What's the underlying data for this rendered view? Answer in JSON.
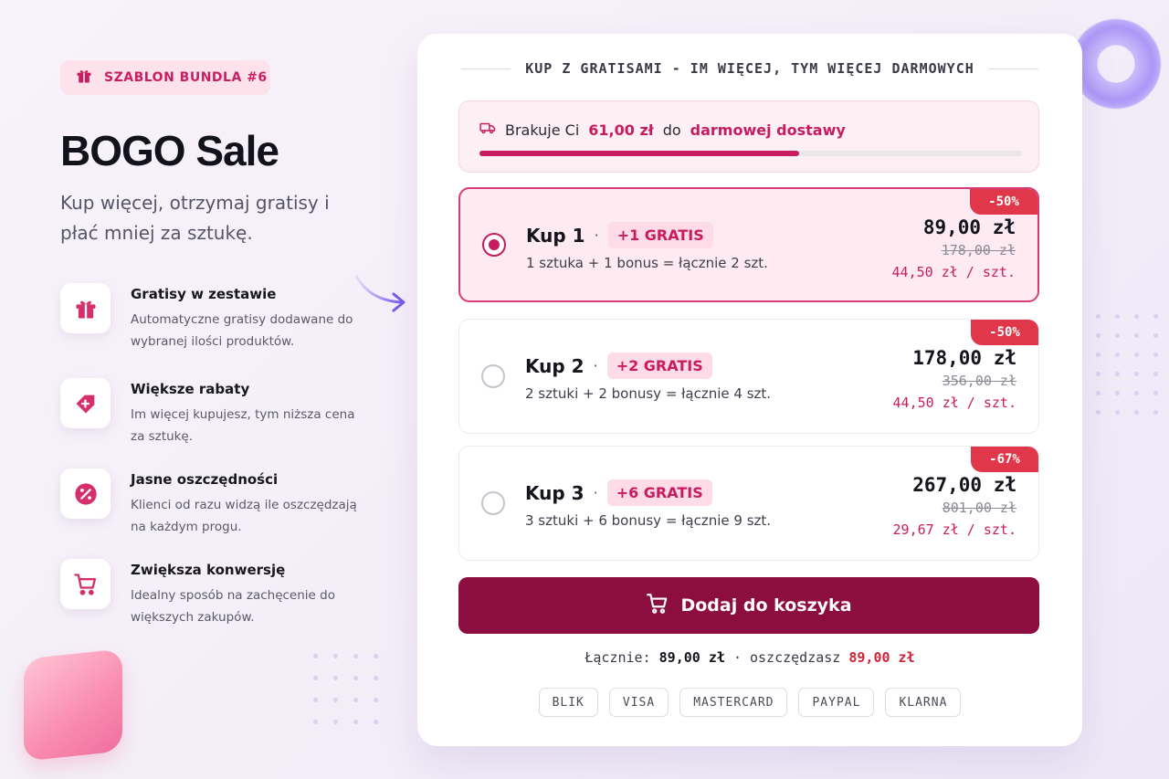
{
  "badge": {
    "label": "SZABLON BUNDLA #6",
    "icon": "gift-icon"
  },
  "hero": {
    "title": "BOGO Sale",
    "subtitle": "Kup więcej, otrzymaj gratisy i płać mniej za sztukę."
  },
  "features": [
    {
      "icon": "gift-icon",
      "title": "Gratisy w zestawie",
      "desc": "Automatyczne gratisy dodawane do wybranej ilości produktów."
    },
    {
      "icon": "tag-plus-icon",
      "title": "Większe rabaty",
      "desc": "Im więcej kupujesz, tym niższa cena za sztukę."
    },
    {
      "icon": "percent-icon",
      "title": "Jasne oszczędności",
      "desc": "Klienci od razu widzą ile oszczędzają na każdym progu."
    },
    {
      "icon": "cart-icon",
      "title": "Zwiększa konwersję",
      "desc": "Idealny sposób na zachęcenie do większych zakupów."
    }
  ],
  "card": {
    "header": "KUP Z GRATISAMI - IM WIĘCEJ, TYM WIĘCEJ DARMOWYCH",
    "shipping": {
      "prefix": "Brakuje Ci",
      "amount": "61,00 zł",
      "middle": "do",
      "target": "darmowej dostawy",
      "progress": 0.59
    },
    "options": [
      {
        "selected": true,
        "kup": "Kup 1",
        "sep": "·",
        "gratis": "+1 GRATIS",
        "desc": "1 sztuka + 1 bonus = łącznie 2 szt.",
        "discount": "-50%",
        "price": "89,00 zł",
        "old_price": "178,00 zł",
        "per_unit": "44,50 zł / szt."
      },
      {
        "selected": false,
        "kup": "Kup 2",
        "sep": "·",
        "gratis": "+2 GRATIS",
        "desc": "2 sztuki + 2 bonusy = łącznie 4 szt.",
        "discount": "-50%",
        "price": "178,00 zł",
        "old_price": "356,00 zł",
        "per_unit": "44,50 zł / szt."
      },
      {
        "selected": false,
        "kup": "Kup 3",
        "sep": "·",
        "gratis": "+6 GRATIS",
        "desc": "3 sztuki + 6 bonusy = łącznie 9 szt.",
        "discount": "-67%",
        "price": "267,00 zł",
        "old_price": "801,00 zł",
        "per_unit": "29,67 zł / szt."
      }
    ],
    "cta": "Dodaj do koszyka",
    "summary": {
      "total_label": "Łącznie:",
      "total": "89,00 zł",
      "save_label": "· oszczędzasz",
      "save": "89,00 zł"
    },
    "payments": [
      "BLIK",
      "VISA",
      "MASTERCARD",
      "PAYPAL",
      "KLARNA"
    ]
  },
  "colors": {
    "accent": "#c81c5f",
    "cta": "#8c0d3f",
    "discount": "#e0374a"
  }
}
